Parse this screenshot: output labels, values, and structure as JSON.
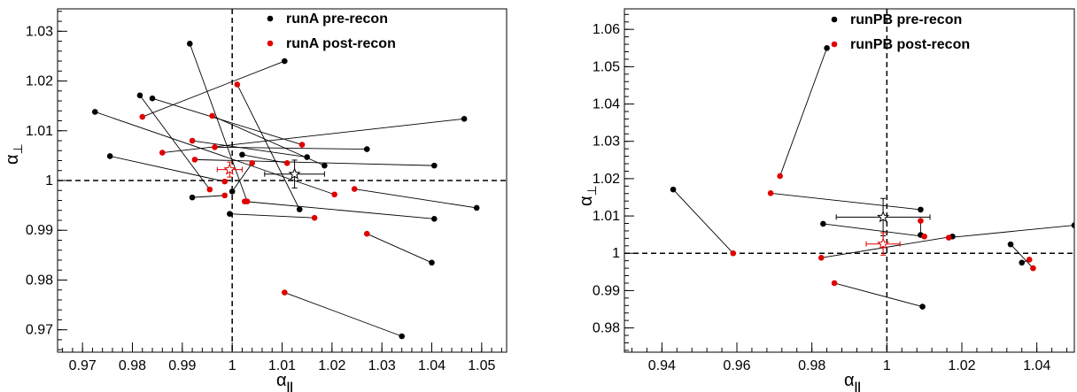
{
  "colors": {
    "pre": "#000000",
    "post": "#e00000"
  },
  "chart_data": [
    {
      "type": "scatter",
      "xlabel": "α",
      "xlabel_sub": "||",
      "ylabel": "α",
      "ylabel_sub": "⊥",
      "xlim": [
        0.965,
        1.055
      ],
      "ylim": [
        0.9655,
        1.0345
      ],
      "xticks": [
        0.97,
        0.98,
        0.99,
        1,
        1.01,
        1.02,
        1.03,
        1.04,
        1.05
      ],
      "xtick_labels": [
        "0.97",
        "0.98",
        "0.99",
        "1",
        "1.01",
        "1.02",
        "1.03",
        "1.04",
        "1.05"
      ],
      "yticks": [
        0.97,
        0.98,
        0.99,
        1,
        1.01,
        1.02,
        1.03
      ],
      "ytick_labels": [
        "0.97",
        "0.98",
        "0.99",
        "1",
        "1.01",
        "1.02",
        "1.03"
      ],
      "ref_x": 1,
      "ref_y": 1,
      "legend_position": "top-right",
      "series": [
        {
          "name": "runA pre-recon",
          "color": "#000000"
        },
        {
          "name": "runA post-recon",
          "color": "#e00000"
        }
      ],
      "pairs": [
        {
          "pre": [
            0.9915,
            1.0275
          ],
          "post": [
            1.003,
            0.9958
          ]
        },
        {
          "pre": [
            0.9815,
            1.0171
          ],
          "post": [
            0.9955,
            0.9982
          ]
        },
        {
          "pre": [
            1.0105,
            1.024
          ],
          "post": [
            0.982,
            1.0128
          ]
        },
        {
          "pre": [
            0.984,
            1.0165
          ],
          "post": [
            1.014,
            1.0072
          ]
        },
        {
          "pre": [
            0.9725,
            1.0138
          ],
          "post": [
            1.0205,
            0.9972
          ]
        },
        {
          "pre": [
            0.9755,
            1.0049
          ],
          "post": [
            0.9985,
            0.9998
          ]
        },
        {
          "pre": [
            1.0465,
            1.0124
          ],
          "post": [
            0.986,
            1.0056
          ]
        },
        {
          "pre": [
            1.0185,
            1.003
          ],
          "post": [
            0.996,
            1.013
          ]
        },
        {
          "pre": [
            1.015,
            1.0047
          ],
          "post": [
            0.992,
            1.008
          ]
        },
        {
          "pre": [
            1.0405,
            1.003
          ],
          "post": [
            0.9925,
            1.0042
          ]
        },
        {
          "pre": [
            1.027,
            1.0063
          ],
          "post": [
            0.9965,
            1.0067
          ]
        },
        {
          "pre": [
            1.049,
            0.9945
          ],
          "post": [
            1.0245,
            0.9983
          ]
        },
        {
          "pre": [
            1.0135,
            0.9942
          ],
          "post": [
            1.001,
            1.0193
          ]
        },
        {
          "pre": [
            1.0405,
            0.9923
          ],
          "post": [
            1.0025,
            0.9958
          ]
        },
        {
          "pre": [
            1.04,
            0.9835
          ],
          "post": [
            1.027,
            0.9893
          ]
        },
        {
          "pre": [
            1.034,
            0.9687
          ],
          "post": [
            1.0105,
            0.9775
          ]
        },
        {
          "pre": [
            0.9995,
            0.9933
          ],
          "post": [
            1.0165,
            0.9925
          ]
        },
        {
          "pre": [
            0.992,
            0.9966
          ],
          "post": [
            0.9985,
            0.997
          ]
        },
        {
          "pre": [
            1.0,
            0.9978
          ],
          "post": [
            1.004,
            1.0035
          ]
        },
        {
          "pre": [
            1.002,
            1.0052
          ],
          "post": [
            1.011,
            1.0035
          ]
        }
      ],
      "means": [
        {
          "series": 0,
          "x": 1.0125,
          "y": 1.0013,
          "xerr": 0.006,
          "yerr": 0.0028
        },
        {
          "series": 1,
          "x": 0.9995,
          "y": 1.0022,
          "xerr": 0.0025,
          "yerr": 0.0015
        }
      ]
    },
    {
      "type": "scatter",
      "xlabel": "α",
      "xlabel_sub": "||",
      "ylabel": "α",
      "ylabel_sub": "⊥",
      "xlim": [
        0.93,
        1.05
      ],
      "ylim": [
        0.9735,
        1.0655
      ],
      "xticks": [
        0.94,
        0.96,
        0.98,
        1,
        1.02,
        1.04
      ],
      "xtick_labels": [
        "0.94",
        "0.96",
        "0.98",
        "1",
        "1.02",
        "1.04"
      ],
      "yticks": [
        0.98,
        0.99,
        1,
        1.01,
        1.02,
        1.03,
        1.04,
        1.05,
        1.06
      ],
      "ytick_labels": [
        "0.98",
        "0.99",
        "1",
        "1.01",
        "1.02",
        "1.03",
        "1.04",
        "1.05",
        "1.06"
      ],
      "ref_x": 1,
      "ref_y": 1,
      "legend_position": "top-right",
      "series": [
        {
          "name": "runPB pre-recon",
          "color": "#000000"
        },
        {
          "name": "runPB post-recon",
          "color": "#e00000"
        }
      ],
      "pairs": [
        {
          "pre": [
            0.984,
            1.055
          ],
          "post": [
            0.9715,
            1.0207
          ]
        },
        {
          "pre": [
            0.943,
            1.0171
          ],
          "post": [
            0.959,
            1.0
          ]
        },
        {
          "pre": [
            1.009,
            1.0117
          ],
          "post": [
            0.969,
            1.0161
          ]
        },
        {
          "pre": [
            1.009,
            1.0049
          ],
          "post": [
            1.009,
            1.0087
          ]
        },
        {
          "pre": [
            0.983,
            1.0079
          ],
          "post": [
            1.01,
            1.0045
          ]
        },
        {
          "pre": [
            1.0175,
            1.0045
          ],
          "post": [
            0.9825,
            0.9988
          ]
        },
        {
          "pre": [
            1.033,
            1.0024
          ],
          "post": [
            1.039,
            0.996
          ]
        },
        {
          "pre": [
            1.036,
            0.9975
          ],
          "post": [
            1.038,
            0.9983
          ]
        },
        {
          "pre": [
            1.0095,
            0.9857
          ],
          "post": [
            0.986,
            0.992
          ]
        },
        {
          "pre": [
            1.05,
            1.0075
          ],
          "post": [
            1.0165,
            1.0042
          ]
        }
      ],
      "means": [
        {
          "series": 0,
          "x": 0.999,
          "y": 1.0097,
          "xerr": 0.0125,
          "yerr": 0.005
        },
        {
          "series": 1,
          "x": 0.999,
          "y": 1.0025,
          "xerr": 0.0045,
          "yerr": 0.003
        }
      ]
    }
  ]
}
